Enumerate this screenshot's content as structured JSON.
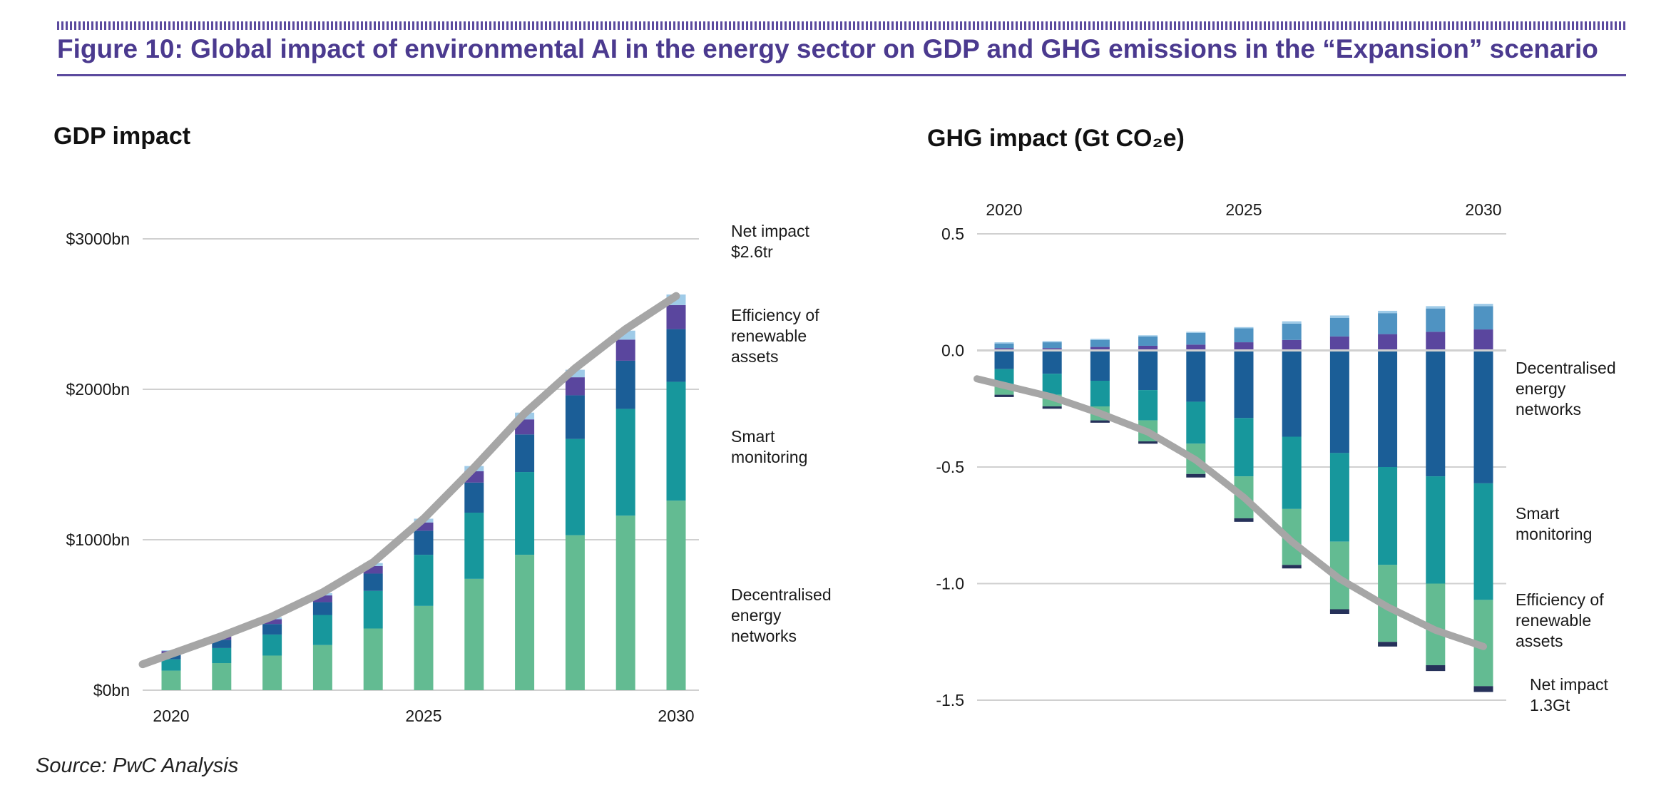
{
  "figure": {
    "title": "Figure 10: Global impact of environmental AI in the energy sector on GDP and GHG emissions in the “Expansion” scenario",
    "source": "Source: PwC Analysis"
  },
  "colors": {
    "decentralised": "#63bb92",
    "smart": "#17979c",
    "darkblue": "#1b5e97",
    "purple": "#5a469e",
    "lightblue": "#9fcbe8",
    "steelblue": "#4f93c2",
    "navy": "#26315a",
    "netline": "#a6a6a6",
    "grid": "#d0d0d0",
    "title": "#4b3a8f"
  },
  "chart_data": [
    {
      "type": "bar",
      "stacked": true,
      "title": "GDP impact",
      "categories": [
        "2020",
        "2021",
        "2022",
        "2023",
        "2024",
        "2025",
        "2026",
        "2027",
        "2028",
        "2029",
        "2030"
      ],
      "ylim": [
        0,
        3000
      ],
      "yticks": [
        0,
        1000,
        2000,
        3000
      ],
      "ytick_labels": [
        "$0bn",
        "$1000bn",
        "$2000bn",
        "$3000bn"
      ],
      "xtick_labels": [
        "2020",
        "2025",
        "2030"
      ],
      "grid": true,
      "series": [
        {
          "name": "Decentralised energy networks",
          "color_key": "decentralised",
          "values": [
            130,
            180,
            230,
            300,
            410,
            560,
            740,
            900,
            1030,
            1160,
            1260
          ]
        },
        {
          "name": "Smart monitoring",
          "color_key": "smart",
          "values": [
            75,
            100,
            140,
            200,
            250,
            340,
            440,
            550,
            640,
            710,
            790
          ]
        },
        {
          "color_key": "darkblue",
          "values": [
            40,
            55,
            70,
            85,
            115,
            160,
            200,
            250,
            290,
            320,
            350
          ]
        },
        {
          "color_key": "purple",
          "values": [
            15,
            22,
            32,
            45,
            50,
            55,
            75,
            100,
            120,
            140,
            160
          ]
        },
        {
          "name": "Efficiency of renewable assets",
          "color_key": "lightblue",
          "values": [
            5,
            8,
            12,
            15,
            20,
            25,
            35,
            45,
            50,
            60,
            70
          ]
        }
      ],
      "net_impact": [
        240,
        360,
        490,
        650,
        850,
        1140,
        1480,
        1840,
        2140,
        2400,
        2620
      ],
      "annotations": {
        "net": [
          "Net impact",
          "$2.6tr"
        ],
        "efficiency": [
          "Efficiency of",
          "renewable",
          "assets"
        ],
        "smart": [
          "Smart",
          "monitoring"
        ],
        "decentralised": [
          "Decentralised",
          "energy",
          "networks"
        ]
      }
    },
    {
      "type": "bar",
      "stacked": true,
      "title": "GHG impact (Gt CO₂e)",
      "categories": [
        "2020",
        "2021",
        "2022",
        "2023",
        "2024",
        "2025",
        "2026",
        "2027",
        "2028",
        "2029",
        "2030"
      ],
      "ylim": [
        -1.5,
        0.5
      ],
      "yticks": [
        0.5,
        0.0,
        -0.5,
        -1.0,
        -1.5
      ],
      "ytick_labels": [
        "0.5",
        "0.0",
        "-0.5",
        "-1.0",
        "-1.5"
      ],
      "xtick_labels": [
        "2020",
        "2025",
        "2030"
      ],
      "grid": true,
      "positive_series": [
        {
          "color_key": "purple",
          "values": [
            0.01,
            0.01,
            0.015,
            0.02,
            0.025,
            0.035,
            0.045,
            0.06,
            0.07,
            0.08,
            0.09
          ]
        },
        {
          "color_key": "steelblue",
          "values": [
            0.02,
            0.025,
            0.03,
            0.04,
            0.05,
            0.06,
            0.07,
            0.08,
            0.09,
            0.1,
            0.1
          ]
        },
        {
          "color_key": "lightblue",
          "values": [
            0.005,
            0.005,
            0.005,
            0.005,
            0.005,
            0.005,
            0.01,
            0.01,
            0.01,
            0.01,
            0.01
          ]
        }
      ],
      "negative_series": [
        {
          "name": "Decentralised energy networks",
          "color_key": "darkblue",
          "values": [
            -0.08,
            -0.1,
            -0.13,
            -0.17,
            -0.22,
            -0.29,
            -0.37,
            -0.44,
            -0.5,
            -0.54,
            -0.57
          ]
        },
        {
          "name": "Smart monitoring",
          "color_key": "smart",
          "values": [
            -0.07,
            -0.09,
            -0.11,
            -0.13,
            -0.18,
            -0.25,
            -0.31,
            -0.38,
            -0.42,
            -0.46,
            -0.5
          ]
        },
        {
          "name": "Efficiency of renewable assets",
          "color_key": "decentralised",
          "values": [
            -0.04,
            -0.05,
            -0.06,
            -0.09,
            -0.13,
            -0.18,
            -0.24,
            -0.29,
            -0.33,
            -0.35,
            -0.37
          ]
        },
        {
          "color_key": "navy",
          "values": [
            -0.01,
            -0.01,
            -0.01,
            -0.01,
            -0.015,
            -0.015,
            -0.015,
            -0.02,
            -0.02,
            -0.025,
            -0.025
          ]
        }
      ],
      "net_impact": [
        -0.15,
        -0.2,
        -0.27,
        -0.35,
        -0.47,
        -0.63,
        -0.82,
        -0.98,
        -1.1,
        -1.2,
        -1.27
      ],
      "annotations": {
        "decentralised": [
          "Decentralised",
          "energy",
          "networks"
        ],
        "smart": [
          "Smart",
          "monitoring"
        ],
        "efficiency": [
          "Efficiency of",
          "renewable",
          "assets"
        ],
        "net": [
          "Net impact",
          "1.3Gt"
        ]
      }
    }
  ]
}
